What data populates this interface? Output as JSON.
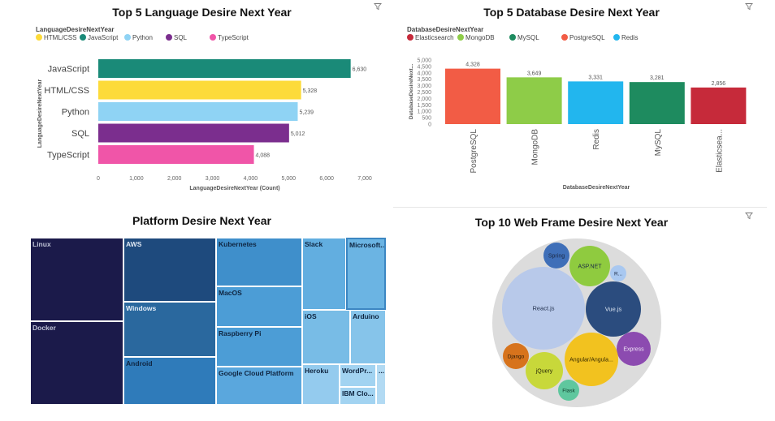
{
  "icons": {
    "filter": "filter-icon"
  },
  "chart_data": [
    {
      "id": "language",
      "type": "bar",
      "orientation": "horizontal",
      "title": "Top 5 Language  Desire Next Year",
      "legend_title": "LanguageDesireNextYear",
      "legend": [
        {
          "label": "HTML/CSS",
          "color": "#FDDB3A"
        },
        {
          "label": "JavaScript",
          "color": "#1A8A78"
        },
        {
          "label": "Python",
          "color": "#8FD3F4"
        },
        {
          "label": "SQL",
          "color": "#7B2E8E"
        },
        {
          "label": "TypeScript",
          "color": "#F055A8"
        }
      ],
      "categories": [
        "JavaScript",
        "HTML/CSS",
        "Python",
        "SQL",
        "TypeScript"
      ],
      "values": [
        6630,
        5328,
        5239,
        5012,
        4088
      ],
      "value_labels": [
        "6,630",
        "5,328",
        "5,239",
        "5,012",
        "4,088"
      ],
      "colors": [
        "#1A8A78",
        "#FDDB3A",
        "#8FD3F4",
        "#7B2E8E",
        "#F055A8"
      ],
      "xticks": [
        "0",
        "1,000",
        "2,000",
        "3,000",
        "4,000",
        "5,000",
        "6,000",
        "7,000"
      ],
      "xlim": [
        0,
        7000
      ],
      "xlabel": "LanguageDesireNextYear (Count)",
      "ylabel": "LanguageDesireNextYear"
    },
    {
      "id": "database",
      "type": "bar",
      "orientation": "vertical",
      "title": "Top 5 Database Desire Next Year",
      "legend_title": "DatabaseDesireNextYear",
      "legend": [
        {
          "label": "Elasticsearch",
          "color": "#C62A3A"
        },
        {
          "label": "MongoDB",
          "color": "#8ECC48"
        },
        {
          "label": "MySQL",
          "color": "#1E8B5F"
        },
        {
          "label": "PostgreSQL",
          "color": "#F25C45"
        },
        {
          "label": "Redis",
          "color": "#22B6EE"
        }
      ],
      "categories": [
        "PostgreSQL",
        "MongoDB",
        "Redis",
        "MySQL",
        "Elasticsea..."
      ],
      "values": [
        4328,
        3649,
        3331,
        3281,
        2856
      ],
      "value_labels": [
        "4,328",
        "3,649",
        "3,331",
        "3,281",
        "2,856"
      ],
      "colors": [
        "#F25C45",
        "#8ECC48",
        "#22B6EE",
        "#1E8B5F",
        "#C62A3A"
      ],
      "yticks": [
        "0",
        "500",
        "1,000",
        "1,500",
        "2,000",
        "2,500",
        "3,000",
        "3,500",
        "4,000",
        "4,500",
        "5,000"
      ],
      "ylim": [
        0,
        5000
      ],
      "xlabel": "DatabaseDesireNextYear",
      "ylabel": "DatabaseDesireNext..."
    },
    {
      "id": "platform",
      "type": "treemap",
      "title": "Platform Desire Next Year",
      "items": [
        {
          "label": "Linux",
          "color": "#1B1A4A",
          "text": "#BFC3D6"
        },
        {
          "label": "Docker",
          "color": "#1B1A4A",
          "text": "#BFC3D6"
        },
        {
          "label": "AWS",
          "color": "#1E4A7D",
          "text": "#DDE6F2"
        },
        {
          "label": "Windows",
          "color": "#2A689E",
          "text": "#E4EDF7"
        },
        {
          "label": "Android",
          "color": "#2F7BBA",
          "text": "#0F2540"
        },
        {
          "label": "Kubernetes",
          "color": "#3F8FCB",
          "text": "#0F2540"
        },
        {
          "label": "MacOS",
          "color": "#4C9DD6",
          "text": "#0F2540"
        },
        {
          "label": "Raspberry Pi",
          "color": "#4C9DD6",
          "text": "#0F2540"
        },
        {
          "label": "Google Cloud Platform",
          "color": "#5AA7DD",
          "text": "#0F2540"
        },
        {
          "label": "Slack",
          "color": "#62AEE0",
          "text": "#0F2540"
        },
        {
          "label": "Microsoft...",
          "color": "#6BB4E3",
          "text": "#0F2540"
        },
        {
          "label": "iOS",
          "color": "#78BCE6",
          "text": "#0F2540"
        },
        {
          "label": "Arduino",
          "color": "#86C4EA",
          "text": "#0F2540"
        },
        {
          "label": "Heroku",
          "color": "#94CBEE",
          "text": "#0F2540"
        },
        {
          "label": "WordPr...",
          "color": "#A2D3F1",
          "text": "#0F2540"
        },
        {
          "label": "IBM Clo...",
          "color": "#A2D3F1",
          "text": "#0F2540"
        },
        {
          "label": "...",
          "color": "#B2DAF3",
          "text": "#0F2540"
        }
      ]
    },
    {
      "id": "webframe",
      "type": "bubble",
      "title": "Top 10 Web Frame Desire Next Year",
      "items": [
        {
          "label": "Spring",
          "color": "#3F6FB8"
        },
        {
          "label": "ASP.NET",
          "color": "#8FCB3F"
        },
        {
          "label": "R...",
          "color": "#A9C8F0"
        },
        {
          "label": "React.js",
          "color": "#B8C9EA"
        },
        {
          "label": "Vue.js",
          "color": "#2B4C7E"
        },
        {
          "label": "Express",
          "color": "#8C4BB0"
        },
        {
          "label": "Django",
          "color": "#D7731C"
        },
        {
          "label": "jQuery",
          "color": "#C8D83A"
        },
        {
          "label": "Angular/Angula...",
          "color": "#F2C21F"
        },
        {
          "label": "Flask",
          "color": "#5FC79E"
        }
      ]
    }
  ]
}
